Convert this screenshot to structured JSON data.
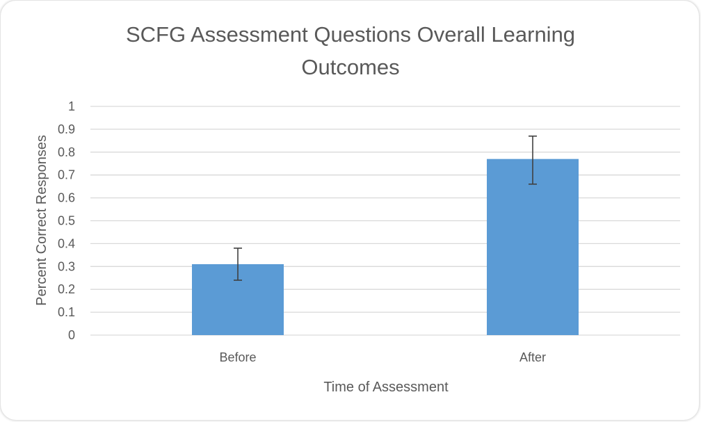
{
  "chart_data": {
    "type": "bar",
    "title_lines": [
      "SCFG Assessment Questions Overall Learning",
      "Outcomes"
    ],
    "categories": [
      "Before",
      "After"
    ],
    "values": [
      0.31,
      0.77
    ],
    "error_low": [
      0.24,
      0.66
    ],
    "error_high": [
      0.38,
      0.87
    ],
    "xlabel": "Time of Assessment",
    "ylabel": "Percent Correct Responses",
    "ylim": [
      0,
      1
    ],
    "yticks": [
      0,
      0.1,
      0.2,
      0.3,
      0.4,
      0.5,
      0.6,
      0.7,
      0.8,
      0.9,
      1
    ],
    "ytick_labels": [
      "0",
      "0.1",
      "0.2",
      "0.3",
      "0.4",
      "0.5",
      "0.6",
      "0.7",
      "0.8",
      "0.9",
      "1"
    ],
    "grid": true,
    "legend": "none",
    "colors": {
      "bar": "#5b9bd5",
      "grid": "#d9d9d9",
      "text": "#595959",
      "error_bar": "#404040"
    }
  }
}
